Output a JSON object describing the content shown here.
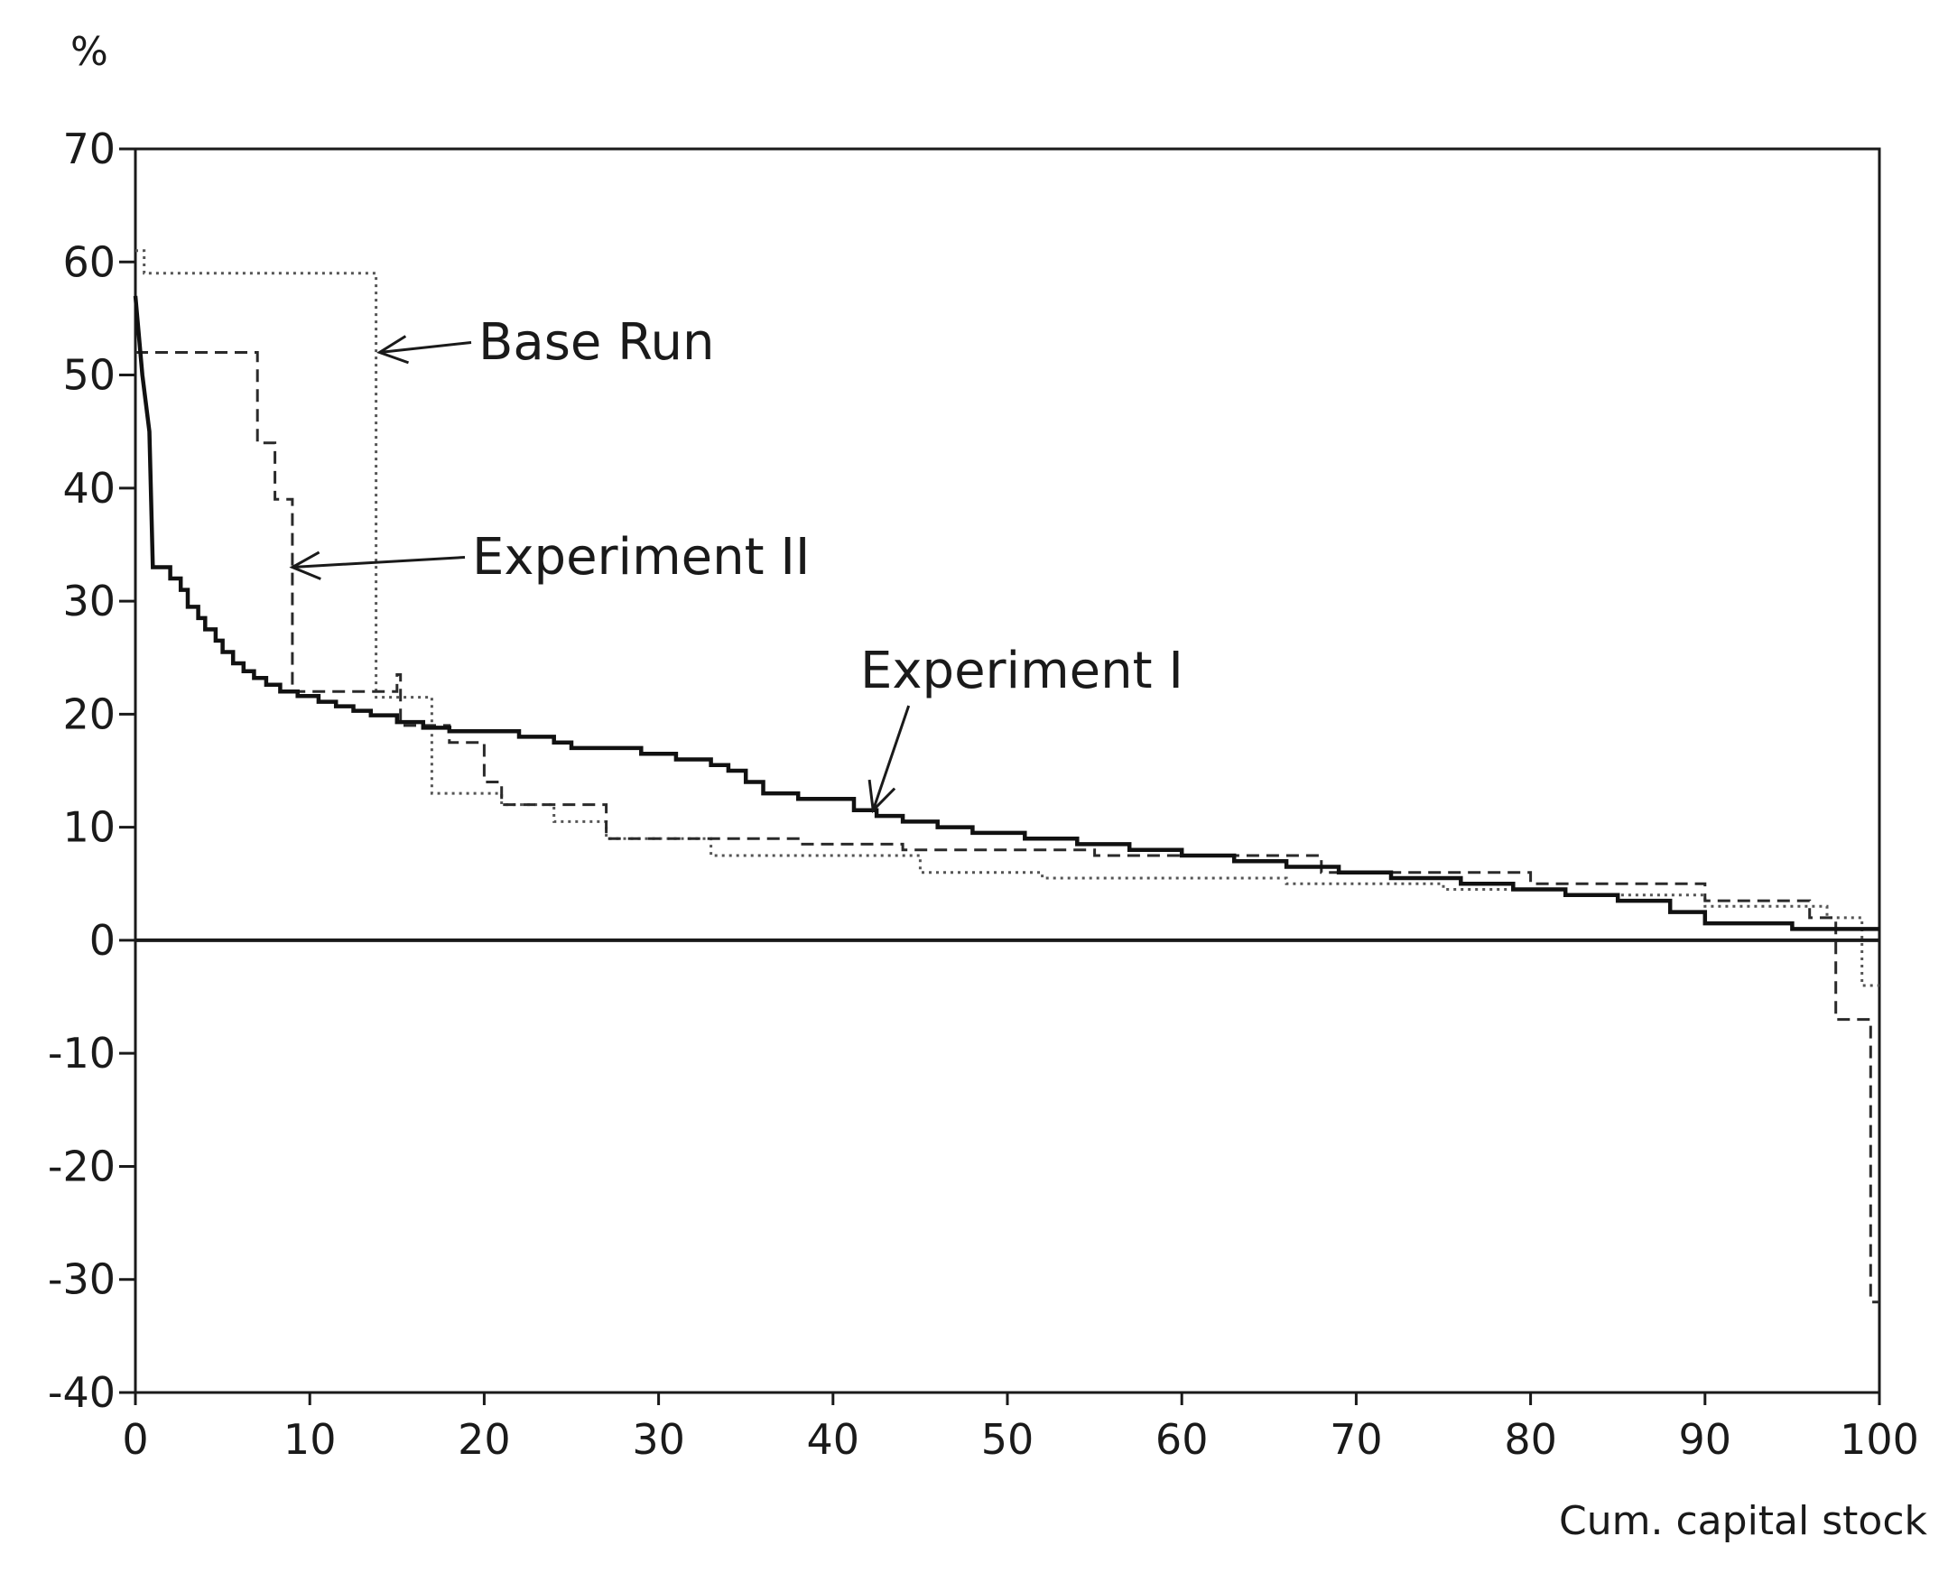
{
  "chart_data": {
    "type": "line",
    "ylabel": "%",
    "xlabel": "Cum. capital stock",
    "xlim": [
      0,
      100
    ],
    "ylim": [
      -40,
      70
    ],
    "x_ticks": [
      0,
      10,
      20,
      30,
      40,
      50,
      60,
      70,
      80,
      90,
      100
    ],
    "x_tick_labels": [
      "0",
      "10",
      "20",
      "30",
      "40",
      "50",
      "60",
      "70",
      "80",
      "90",
      "100"
    ],
    "y_ticks": [
      70,
      60,
      50,
      40,
      30,
      20,
      10,
      0,
      -10,
      -20,
      -30,
      -40
    ],
    "y_tick_labels": [
      "70",
      "60",
      "50",
      "40",
      "30",
      "20",
      "10",
      "0",
      "-10",
      "-20",
      "-30",
      "-40"
    ],
    "zero_line": true,
    "grid": false,
    "legend": "none",
    "series": [
      {
        "name": "Base Run",
        "style": "dotted",
        "points": [
          [
            0,
            61
          ],
          [
            0.5,
            61
          ],
          [
            0.5,
            59
          ],
          [
            13.8,
            59
          ],
          [
            13.8,
            21.5
          ],
          [
            17,
            21.5
          ],
          [
            17,
            13
          ],
          [
            21,
            13
          ],
          [
            21,
            12
          ],
          [
            24,
            12
          ],
          [
            24,
            10.5
          ],
          [
            27,
            10.5
          ],
          [
            27,
            9
          ],
          [
            33,
            9
          ],
          [
            33,
            7.5
          ],
          [
            45,
            7.5
          ],
          [
            45,
            6
          ],
          [
            52,
            6
          ],
          [
            52,
            5.5
          ],
          [
            66,
            5.5
          ],
          [
            66,
            5
          ],
          [
            75,
            5
          ],
          [
            75,
            4.5
          ],
          [
            82,
            4.5
          ],
          [
            82,
            4
          ],
          [
            90,
            4
          ],
          [
            90,
            3
          ],
          [
            97,
            3
          ],
          [
            97,
            2
          ],
          [
            99,
            2
          ],
          [
            99,
            -4
          ],
          [
            100,
            -4
          ]
        ]
      },
      {
        "name": "Experiment II",
        "style": "dashed",
        "points": [
          [
            0,
            52
          ],
          [
            7,
            52
          ],
          [
            7,
            44
          ],
          [
            8,
            44
          ],
          [
            8,
            39
          ],
          [
            9,
            39
          ],
          [
            9,
            22
          ],
          [
            15,
            22
          ],
          [
            15,
            23.5
          ],
          [
            15.2,
            23.5
          ],
          [
            15.2,
            19
          ],
          [
            18,
            19
          ],
          [
            18,
            17.5
          ],
          [
            20,
            17.5
          ],
          [
            20,
            14
          ],
          [
            21,
            14
          ],
          [
            21,
            12
          ],
          [
            27,
            12
          ],
          [
            27,
            9
          ],
          [
            38,
            9
          ],
          [
            38,
            8.5
          ],
          [
            44,
            8.5
          ],
          [
            44,
            8
          ],
          [
            55,
            8
          ],
          [
            55,
            7.5
          ],
          [
            68,
            7.5
          ],
          [
            68,
            6
          ],
          [
            80,
            6
          ],
          [
            80,
            5
          ],
          [
            90,
            5
          ],
          [
            90,
            3.5
          ],
          [
            96,
            3.5
          ],
          [
            96,
            2
          ],
          [
            97.5,
            2
          ],
          [
            97.5,
            -7
          ],
          [
            99.5,
            -7
          ],
          [
            99.5,
            -32
          ],
          [
            100,
            -32
          ]
        ]
      },
      {
        "name": "Experiment I",
        "style": "solid",
        "points": [
          [
            0,
            57
          ],
          [
            0.4,
            50
          ],
          [
            0.8,
            45
          ],
          [
            1,
            33
          ],
          [
            2,
            33
          ],
          [
            2,
            32
          ],
          [
            2.6,
            32
          ],
          [
            2.6,
            31
          ],
          [
            3,
            31
          ],
          [
            3,
            29.5
          ],
          [
            3.6,
            29.5
          ],
          [
            3.6,
            28.5
          ],
          [
            4,
            28.5
          ],
          [
            4,
            27.5
          ],
          [
            4.6,
            27.5
          ],
          [
            4.6,
            26.5
          ],
          [
            5,
            26.5
          ],
          [
            5,
            25.5
          ],
          [
            5.6,
            25.5
          ],
          [
            5.6,
            24.5
          ],
          [
            6.2,
            24.5
          ],
          [
            6.2,
            23.8
          ],
          [
            6.8,
            23.8
          ],
          [
            6.8,
            23.2
          ],
          [
            7.5,
            23.2
          ],
          [
            7.5,
            22.6
          ],
          [
            8.3,
            22.6
          ],
          [
            8.3,
            22
          ],
          [
            9.3,
            22
          ],
          [
            9.3,
            21.6
          ],
          [
            10.5,
            21.6
          ],
          [
            10.5,
            21.1
          ],
          [
            11.5,
            21.1
          ],
          [
            11.5,
            20.7
          ],
          [
            12.5,
            20.7
          ],
          [
            12.5,
            20.3
          ],
          [
            13.5,
            20.3
          ],
          [
            13.5,
            19.9
          ],
          [
            15,
            19.9
          ],
          [
            15,
            19.3
          ],
          [
            16.5,
            19.3
          ],
          [
            16.5,
            18.8
          ],
          [
            18,
            18.8
          ],
          [
            18,
            18.5
          ],
          [
            22,
            18.5
          ],
          [
            22,
            18
          ],
          [
            24,
            18
          ],
          [
            24,
            17.5
          ],
          [
            25,
            17.5
          ],
          [
            25,
            17
          ],
          [
            29,
            17
          ],
          [
            29,
            16.5
          ],
          [
            31,
            16.5
          ],
          [
            31,
            16
          ],
          [
            33,
            16
          ],
          [
            33,
            15.5
          ],
          [
            34,
            15.5
          ],
          [
            34,
            15
          ],
          [
            35,
            15
          ],
          [
            35,
            14
          ],
          [
            36,
            14
          ],
          [
            36,
            13
          ],
          [
            38,
            13
          ],
          [
            38,
            12.5
          ],
          [
            41.2,
            12.5
          ],
          [
            41.2,
            11.5
          ],
          [
            42.5,
            11.5
          ],
          [
            42.5,
            11
          ],
          [
            44,
            11
          ],
          [
            44,
            10.5
          ],
          [
            46,
            10.5
          ],
          [
            46,
            10
          ],
          [
            48,
            10
          ],
          [
            48,
            9.5
          ],
          [
            51,
            9.5
          ],
          [
            51,
            9
          ],
          [
            54,
            9
          ],
          [
            54,
            8.5
          ],
          [
            57,
            8.5
          ],
          [
            57,
            8
          ],
          [
            60,
            8
          ],
          [
            60,
            7.5
          ],
          [
            63,
            7.5
          ],
          [
            63,
            7
          ],
          [
            66,
            7
          ],
          [
            66,
            6.5
          ],
          [
            69,
            6.5
          ],
          [
            69,
            6
          ],
          [
            72,
            6
          ],
          [
            72,
            5.5
          ],
          [
            76,
            5.5
          ],
          [
            76,
            5
          ],
          [
            79,
            5
          ],
          [
            79,
            4.5
          ],
          [
            82,
            4.5
          ],
          [
            82,
            4
          ],
          [
            85,
            4
          ],
          [
            85,
            3.5
          ],
          [
            88,
            3.5
          ],
          [
            88,
            2.5
          ],
          [
            90,
            2.5
          ],
          [
            90,
            1.5
          ],
          [
            95,
            1.5
          ],
          [
            95,
            1
          ],
          [
            100,
            1
          ]
        ]
      }
    ],
    "annotations": [
      {
        "text": "Base Run",
        "arrow_to": [
          14,
          52
        ]
      },
      {
        "text": "Experiment II",
        "arrow_to": [
          9,
          33
        ]
      },
      {
        "text": "Experiment I",
        "arrow_to": [
          42.3,
          11.5
        ]
      }
    ]
  }
}
